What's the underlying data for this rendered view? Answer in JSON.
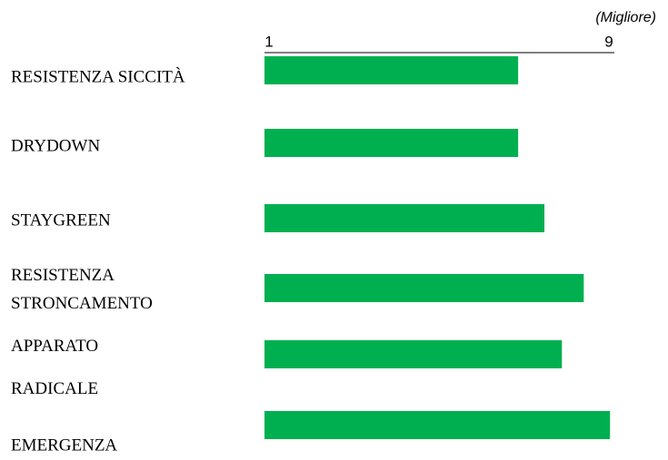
{
  "chart_data": {
    "type": "bar",
    "orientation": "horizontal",
    "annotation": "(Migliore)",
    "categories": [
      "RESISTENZA SICCITÀ",
      "DRYDOWN",
      "STAYGREEN",
      "RESISTENZA STRONCAMENTO",
      "APPARATO RADICALE",
      "EMERGENZA"
    ],
    "values": [
      6.8,
      6.8,
      7.4,
      8.3,
      7.8,
      8.9
    ],
    "color": "#00b050",
    "xlim": [
      1,
      9
    ],
    "xticks": [
      1,
      9
    ],
    "grid": false
  }
}
